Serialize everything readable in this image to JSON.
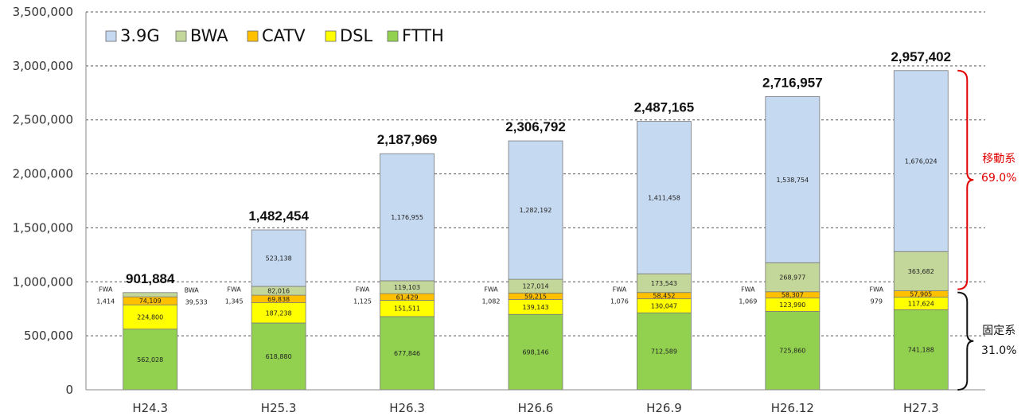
{
  "chart_data": {
    "type": "bar",
    "stacked": true,
    "categories": [
      "H24.3",
      "H25.3",
      "H26.3",
      "H26.6",
      "H26.9",
      "H26.12",
      "H27.3"
    ],
    "series": [
      {
        "name": "FTTH",
        "color": "#92D050",
        "values": [
          562028,
          618880,
          677846,
          698146,
          712589,
          725860,
          741188
        ]
      },
      {
        "name": "DSL",
        "color": "#FFFF00",
        "values": [
          224800,
          187238,
          151511,
          139143,
          130047,
          123990,
          117624
        ]
      },
      {
        "name": "CATV",
        "color": "#FFC000",
        "values": [
          74109,
          69838,
          61429,
          59215,
          58452,
          58307,
          57905
        ]
      },
      {
        "name": "BWA",
        "color": "#C4D79B",
        "values": [
          39533,
          82016,
          119103,
          127014,
          173543,
          268977,
          363682
        ]
      },
      {
        "name": "3.9G",
        "color": "#C5D9F1",
        "values": [
          0,
          523138,
          1176955,
          1282192,
          1411458,
          1538754,
          1676024
        ]
      }
    ],
    "segment_labels": [
      {
        "FTTH": "562,028",
        "DSL": "224,800",
        "CATV": "74,109",
        "BWA": "",
        "3.9G": ""
      },
      {
        "FTTH": "618,880",
        "DSL": "187,238",
        "CATV": "69,838",
        "BWA": "82,016",
        "3.9G": "523,138"
      },
      {
        "FTTH": "677,846",
        "DSL": "151,511",
        "CATV": "61,429",
        "BWA": "119,103",
        "3.9G": "1,176,955"
      },
      {
        "FTTH": "698,146",
        "DSL": "139,143",
        "CATV": "59,215",
        "BWA": "127,014",
        "3.9G": "1,282,192"
      },
      {
        "FTTH": "712,589",
        "DSL": "130,047",
        "CATV": "58,452",
        "BWA": "173,543",
        "3.9G": "1,411,458"
      },
      {
        "FTTH": "725,860",
        "DSL": "123,990",
        "CATV": "58,307",
        "BWA": "268,977",
        "3.9G": "1,538,754"
      },
      {
        "FTTH": "741,188",
        "DSL": "117,624",
        "CATV": "57,905",
        "BWA": "363,682",
        "3.9G": "1,676,024"
      }
    ],
    "fwa": {
      "label": "FWA",
      "values": [
        "1,414",
        "1,345",
        "1,125",
        "1,082",
        "1,076",
        "1,069",
        "979"
      ]
    },
    "bwa_callout": {
      "label": "BWA",
      "value": "39,533"
    },
    "totals": [
      "901,884",
      "1,482,454",
      "2,187,969",
      "2,306,792",
      "2,487,165",
      "2,716,957",
      "2,957,402"
    ],
    "y_ticks": [
      "0",
      "500,000",
      "1,000,000",
      "1,500,000",
      "2,000,000",
      "2,500,000",
      "3,000,000",
      "3,500,000"
    ],
    "ylim": [
      0,
      3500000
    ],
    "grid": true,
    "legend": {
      "placement": "top-left",
      "order": [
        "3.9G",
        "BWA",
        "CATV",
        "DSL",
        "FTTH"
      ]
    },
    "annotations": {
      "mobile": {
        "label": "移動系",
        "pct": "69.0%",
        "color": "#E00000"
      },
      "fixed": {
        "label": "固定系",
        "pct": "31.0%",
        "color": "#111111"
      }
    }
  }
}
